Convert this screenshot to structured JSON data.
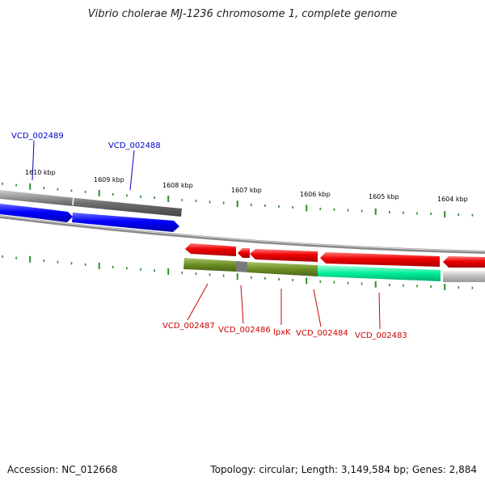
{
  "title": "Vibrio cholerae MJ-1236 chromosome 1, complete genome",
  "footer": {
    "accession": "Accession: NC_012668",
    "summary": "Topology: circular; Length: 3,149,584 bp; Genes: 2,884"
  },
  "ticks": [
    "1610 kbp",
    "1609 kbp",
    "1608 kbp",
    "1607 kbp",
    "1606 kbp",
    "1605 kbp",
    "1604 kbp"
  ],
  "genes_top": [
    {
      "label": "VCD_002489",
      "color": "#0000cc"
    },
    {
      "label": "VCD_002488",
      "color": "#0000cc"
    }
  ],
  "genes_bottom": [
    {
      "label": "VCD_002487",
      "color": "#cc0000"
    },
    {
      "label": "VCD_002486",
      "color": "#cc0000"
    },
    {
      "label": "lpxK",
      "color": "#cc0000"
    },
    {
      "label": "VCD_002484",
      "color": "#cc0000"
    },
    {
      "label": "VCD_002483",
      "color": "#cc0000"
    }
  ],
  "colors": {
    "cds_forward": "#0000ff",
    "cds_reverse": "#ee0000",
    "gene_track": "#777777",
    "olive_feature": "#6b8e23",
    "teal_feature": "#00ee99",
    "tick_green": "#2e8b2e",
    "backbone": "#8a8a8a"
  }
}
